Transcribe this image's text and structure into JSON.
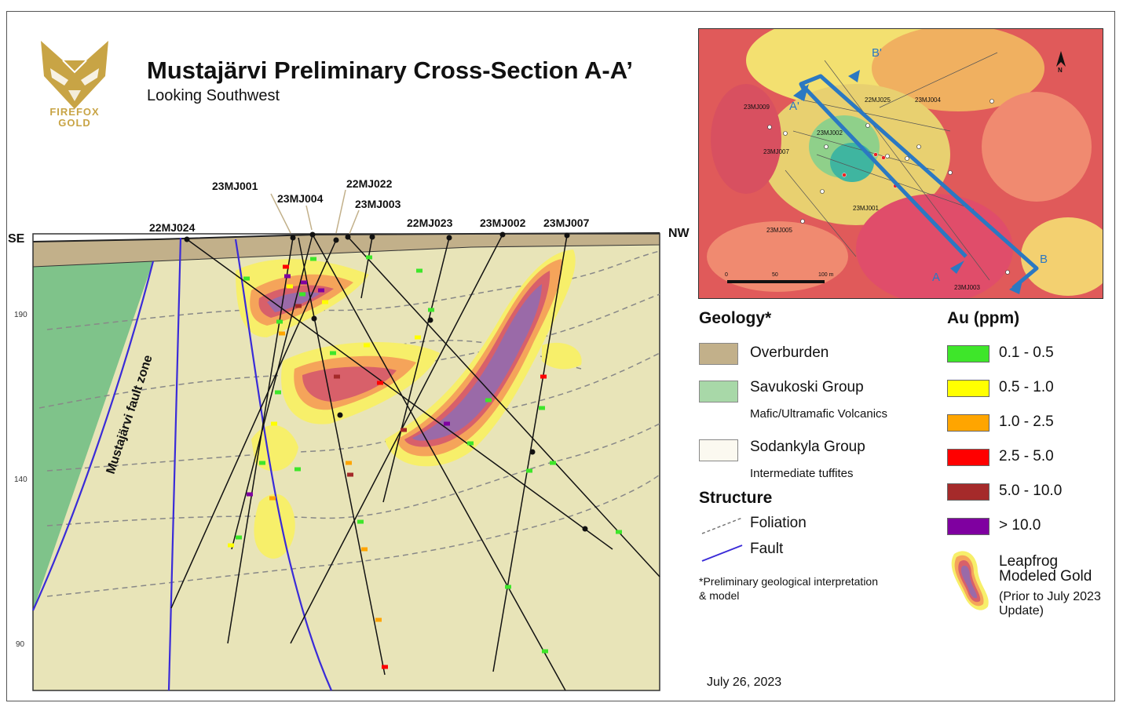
{
  "header": {
    "title": "Mustajärvi Preliminary Cross-Section A-A’",
    "subtitle": "Looking Southwest",
    "logo_line1": "FIREFOX",
    "logo_line2": "GOLD"
  },
  "section": {
    "left_dir": "SE",
    "right_dir": "NW",
    "fault_zone_label": "Mustajärvi fault zone",
    "elevations": [
      "190",
      "140",
      "90"
    ],
    "holes": [
      "23MJ001",
      "23MJ004",
      "22MJ022",
      "22MJ024",
      "23MJ003",
      "22MJ023",
      "23MJ002",
      "23MJ007"
    ]
  },
  "minimap": {
    "labels": [
      "23MJ009",
      "23MJ002",
      "23MJ007",
      "22MJ025",
      "23MJ004",
      "23MJ001",
      "23MJ005",
      "23MJ003"
    ],
    "section_labels": [
      "A",
      "A'",
      "B",
      "B'"
    ],
    "scale": [
      "0",
      "50",
      "100 m"
    ],
    "north": "N"
  },
  "legend": {
    "geology_title": "Geology*",
    "overburden": "Overburden",
    "savukoski": "Savukoski Group",
    "savukoski_sub": "Mafic/Ultramafic Volcanics",
    "sodankyla": "Sodankyla Group",
    "sodankyla_sub": "Intermediate tuffites",
    "structure_title": "Structure",
    "foliation": "Foliation",
    "fault": "Fault",
    "note_line1": "*Preliminary geological interpretation",
    "note_line2": "& model",
    "au_title": "Au (ppm)",
    "au_bins": [
      {
        "label": "0.1 - 0.5",
        "color": "#3ee62a"
      },
      {
        "label": "0.5 - 1.0",
        "color": "#ffff00"
      },
      {
        "label": "1.0 - 2.5",
        "color": "#ffa500"
      },
      {
        "label": "2.5 - 5.0",
        "color": "#ff0000"
      },
      {
        "label": "5.0 - 10.0",
        "color": "#a52a2a"
      },
      {
        "label": "> 10.0",
        "color": "#7f00a0"
      }
    ],
    "leapfrog_l1": "Leapfrog",
    "leapfrog_l2": "Modeled Gold",
    "leapfrog_l3": "(Prior to July 2023",
    "leapfrog_l4": "Update)"
  },
  "footer": {
    "date": "July 26, 2023"
  },
  "colors": {
    "overburden": "#c2b08a",
    "savukoski": "#8ac98a",
    "sodankyla": "#e8e4b8",
    "fault": "#3a2bd8",
    "section_line": "#2b78c2"
  }
}
